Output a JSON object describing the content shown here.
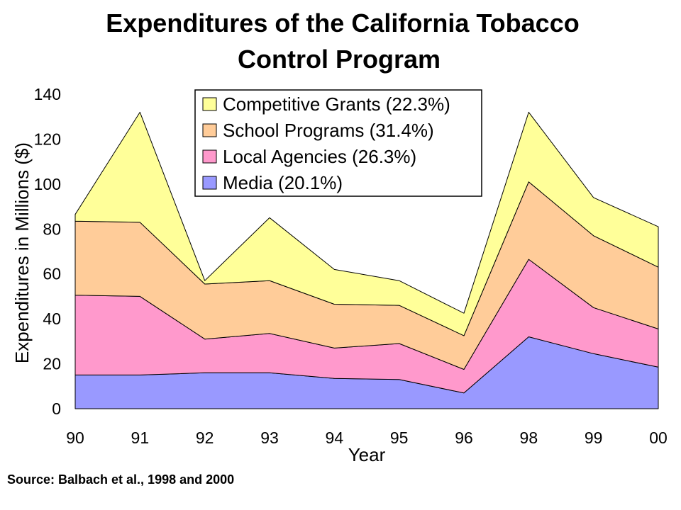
{
  "page": {
    "title_line1": "Expenditures of the California Tobacco",
    "title_line2": "Control Program",
    "source": "Source: Balbach et al., 1998 and 2000"
  },
  "chart_data": {
    "type": "area",
    "stacked": true,
    "title": "Expenditures of the California Tobacco Control Program",
    "xlabel": "Year",
    "ylabel": "Expenditures in Millions ($)",
    "categories": [
      "90",
      "91",
      "92",
      "93",
      "94",
      "95",
      "96",
      "98",
      "99",
      "00"
    ],
    "ylim": [
      0,
      140
    ],
    "yticks": [
      0,
      20,
      40,
      60,
      80,
      100,
      120,
      140
    ],
    "legend_position": "top-center",
    "series": [
      {
        "name": "Media (20.1%)",
        "color": "#9999ff",
        "values": [
          15,
          15,
          16,
          16,
          13.5,
          13,
          7,
          32,
          24.5,
          18.5
        ]
      },
      {
        "name": "Local Agencies (26.3%)",
        "color": "#ff99cc",
        "values": [
          35.5,
          35,
          15,
          17.5,
          13.5,
          16,
          10.5,
          34.5,
          20.5,
          17
        ]
      },
      {
        "name": "School Programs (31.4%)",
        "color": "#ffcc99",
        "values": [
          33,
          33,
          24.5,
          23.5,
          19.5,
          17,
          15,
          34.5,
          32,
          27.5
        ]
      },
      {
        "name": "Competitive Grants (22.3%)",
        "color": "#ffff99",
        "values": [
          3,
          49,
          1.5,
          28,
          15.5,
          11,
          10,
          31,
          17,
          18
        ]
      }
    ]
  }
}
